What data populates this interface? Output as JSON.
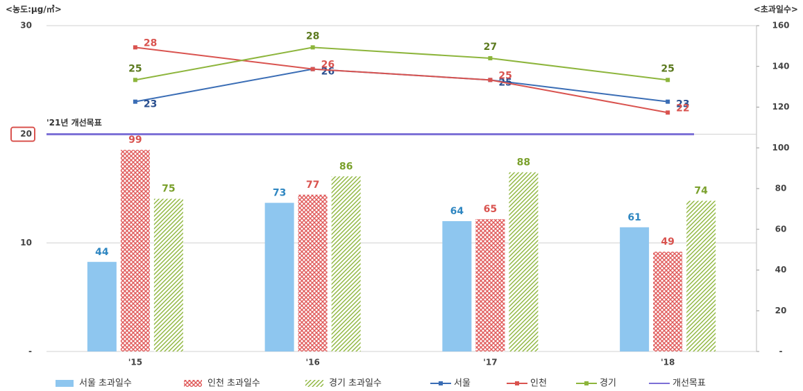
{
  "chart_data": {
    "type": "combo",
    "y_label": "<농도:μg/㎥>",
    "y2_label": "<초과일수>",
    "categories": [
      "'15",
      "'16",
      "'17",
      "'18"
    ],
    "ylim": [
      0,
      30
    ],
    "yticks": [
      {
        "value": 0,
        "label": "-"
      },
      10,
      20,
      30
    ],
    "y2lim": [
      0,
      160
    ],
    "y2ticks": [
      {
        "value": 0,
        "label": "-"
      },
      20,
      40,
      60,
      80,
      100,
      120,
      140,
      160
    ],
    "grid": true,
    "series": [
      {
        "name": "서울 초과일수",
        "type": "bar",
        "axis": "y2",
        "color": "#8ec6ef",
        "label_color": "#2e86c1",
        "values": [
          44,
          73,
          64,
          61
        ]
      },
      {
        "name": "인천 초과일수",
        "type": "bar",
        "axis": "y2",
        "color": "#e05a5a",
        "label_color": "#d9534f",
        "values": [
          99,
          77,
          65,
          49
        ]
      },
      {
        "name": "경기 초과일수",
        "type": "bar",
        "axis": "y2",
        "color": "#8db53c",
        "label_color": "#7aa02c",
        "values": [
          75,
          86,
          88,
          74
        ]
      },
      {
        "name": "서울",
        "type": "line",
        "color": "#3a6db5",
        "label_color": "#2a4f8f",
        "values": [
          23,
          26,
          25,
          23
        ]
      },
      {
        "name": "인천",
        "type": "line",
        "color": "#d9534f",
        "label_color": "#d9534f",
        "values": [
          28,
          26,
          25,
          22
        ]
      },
      {
        "name": "경기",
        "type": "line",
        "color": "#8db53c",
        "label_color": "#5c7a1f",
        "values": [
          25,
          28,
          27,
          25
        ]
      }
    ],
    "target": {
      "name": "개선목표",
      "label": "'21년 개선목표",
      "value": 20,
      "color": "#7b6fd6"
    }
  }
}
